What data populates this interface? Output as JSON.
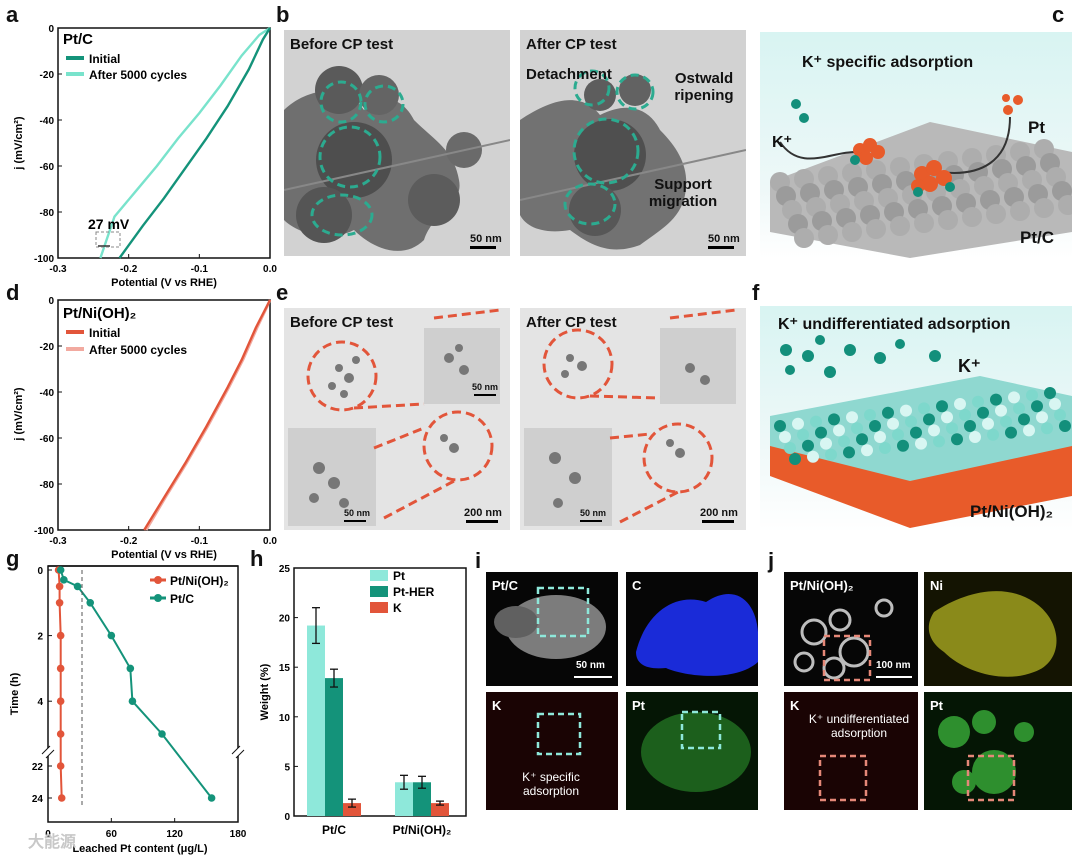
{
  "labels": {
    "a": "a",
    "b": "b",
    "c": "c",
    "d": "d",
    "e": "e",
    "f": "f",
    "g": "g",
    "h": "h",
    "i": "i",
    "j": "j"
  },
  "panel_a": {
    "title": "Pt/C",
    "leg1": "Initial",
    "leg2": "After 5000 cycles",
    "ann": "27 mV",
    "xlabel": "Potential (V vs RHE)",
    "ylabel": "j (mV/cm²)",
    "colors": {
      "s1": "#14937a",
      "s2": "#79e3cc"
    }
  },
  "panel_b": {
    "left_title": "Before CP test",
    "right_title": "After CP test",
    "detach": "Detachment",
    "ostwald": "Ostwald ripening",
    "support": "Support migration",
    "scale": "50 nm"
  },
  "panel_c": {
    "title": "K⁺ specific adsorption",
    "k": "K⁺",
    "pt": "Pt",
    "sample": "Pt/C"
  },
  "panel_d": {
    "title": "Pt/Ni(OH)₂",
    "leg1": "Initial",
    "leg2": "After 5000 cycles",
    "xlabel": "Potential (V vs RHE)",
    "ylabel": "j (mV/cm²)",
    "colors": {
      "s1": "#e2553a",
      "s2": "#f2aaa0"
    }
  },
  "panel_e": {
    "left_title": "Before CP test",
    "right_title": "After CP test",
    "scale_small": "50 nm",
    "scale_big": "200 nm"
  },
  "panel_f": {
    "title": "K⁺ undifferentiated adsorption",
    "k": "K⁺",
    "sample": "Pt/Ni(OH)₂"
  },
  "panel_g": {
    "leg1": "Pt/Ni(OH)₂",
    "leg2": "Pt/C",
    "xlabel": "Leached Pt content (μg/L)",
    "ylabel": "Time (h)"
  },
  "panel_h": {
    "leg": [
      "Pt",
      "Pt-HER",
      "K"
    ],
    "ylabel": "Weight (%)",
    "groups": [
      "Pt/C",
      "Pt/Ni(OH)₂"
    ]
  },
  "panel_i": {
    "ptc": "Pt/C",
    "c": "C",
    "k": "K",
    "pt": "Pt",
    "kspec": "K⁺ specific adsorption",
    "scale": "50 nm"
  },
  "panel_j": {
    "ptni": "Pt/Ni(OH)₂",
    "ni": "Ni",
    "k": "K",
    "pt": "Pt",
    "kund": "K⁺ undifferentiated adsorption",
    "scale": "100 nm"
  },
  "watermark": "大能源",
  "chart_data": [
    {
      "type": "line",
      "panel": "a",
      "xlim": [
        -0.3,
        0.0
      ],
      "ylim": [
        -100,
        0
      ],
      "xticks": [
        "-0.3",
        "-0.2",
        "-0.1",
        "0.0"
      ],
      "yticks": [
        "0",
        "-20",
        "-40",
        "-60",
        "-80",
        "-100"
      ],
      "series": [
        {
          "name": "Initial",
          "x": [
            -0.213,
            -0.18,
            -0.15,
            -0.12,
            -0.09,
            -0.06,
            -0.03,
            -0.01,
            0
          ],
          "y": [
            -100,
            -86,
            -74,
            -61,
            -48,
            -34,
            -18,
            -5,
            0
          ]
        },
        {
          "name": "After 5000 cycles",
          "x": [
            -0.24,
            -0.22,
            -0.19,
            -0.16,
            -0.13,
            -0.1,
            -0.07,
            -0.04,
            -0.015,
            0
          ],
          "y": [
            -100,
            -82,
            -71,
            -60,
            -48,
            -37,
            -25,
            -12,
            -3,
            0
          ]
        }
      ]
    },
    {
      "type": "line",
      "panel": "d",
      "xlim": [
        -0.3,
        0.0
      ],
      "ylim": [
        -100,
        0
      ],
      "xticks": [
        "-0.3",
        "-0.2",
        "-0.1",
        "0.0"
      ],
      "yticks": [
        "0",
        "-20",
        "-40",
        "-60",
        "-80",
        "-100"
      ],
      "series": [
        {
          "name": "Initial",
          "x": [
            -0.178,
            -0.15,
            -0.12,
            -0.09,
            -0.06,
            -0.04,
            -0.02,
            -0.005,
            0
          ],
          "y": [
            -100,
            -86,
            -71,
            -55,
            -38,
            -26,
            -12,
            -3,
            0
          ]
        },
        {
          "name": "After 5000 cycles",
          "x": [
            -0.175,
            -0.148,
            -0.118,
            -0.088,
            -0.058,
            -0.038,
            -0.018,
            -0.004,
            0
          ],
          "y": [
            -100,
            -86,
            -71,
            -55,
            -38,
            -26,
            -12,
            -3,
            0
          ]
        }
      ]
    },
    {
      "type": "line",
      "panel": "g",
      "xticks": [
        "0",
        "60",
        "120",
        "180"
      ],
      "xlim": [
        0,
        180
      ],
      "yticks": [
        "0",
        "2",
        "4",
        "22",
        "24"
      ],
      "series": [
        {
          "name": "Pt/Ni(OH)₂",
          "x": [
            10,
            11,
            11,
            12,
            12,
            12,
            12,
            12,
            13
          ],
          "y": [
            0,
            0.5,
            1,
            2,
            3,
            4,
            5,
            22,
            24
          ]
        },
        {
          "name": "Pt/C",
          "x": [
            12,
            15,
            28,
            40,
            60,
            78,
            80,
            108,
            155
          ],
          "y": [
            0,
            0.3,
            0.5,
            1,
            2,
            3,
            4,
            5,
            24
          ]
        }
      ]
    },
    {
      "type": "bar",
      "panel": "h",
      "categories": [
        "Pt/C",
        "Pt/Ni(OH)₂"
      ],
      "ylim": [
        0,
        25
      ],
      "yticks": [
        "0",
        "5",
        "10",
        "15",
        "20",
        "25"
      ],
      "series": [
        {
          "name": "Pt",
          "values": [
            19.2,
            3.4
          ],
          "err": [
            1.8,
            0.7
          ]
        },
        {
          "name": "Pt-HER",
          "values": [
            13.9,
            3.4
          ],
          "err": [
            0.9,
            0.6
          ]
        },
        {
          "name": "K",
          "values": [
            1.3,
            1.3
          ],
          "err": [
            0.4,
            0.2
          ]
        }
      ]
    }
  ]
}
